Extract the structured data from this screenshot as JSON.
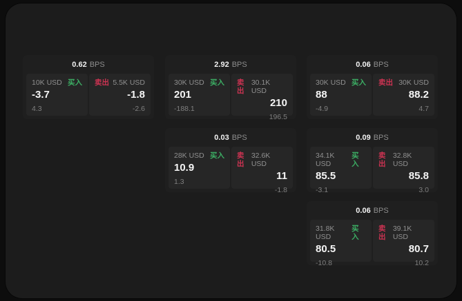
{
  "window": {
    "unit_label": "BPS",
    "buy_label": "买入",
    "sell_label": "卖出",
    "colors": {
      "background": "#0d0d0d",
      "panel": "#1c1c1c",
      "card": "#1f1f1f",
      "tile": "#262626",
      "buy_accent": "#3cae64",
      "sell_accent": "#cc3352"
    }
  },
  "cards": [
    {
      "bps": "0.62",
      "buy": {
        "amount": "10K USD",
        "price": "-3.7",
        "delta": "4.3"
      },
      "sell": {
        "amount": "5.5K USD",
        "price": "-1.8",
        "delta": "-2.6"
      }
    },
    {
      "bps": "2.92",
      "buy": {
        "amount": "30K USD",
        "price": "201",
        "delta": "-188.1"
      },
      "sell": {
        "amount": "30.1K USD",
        "price": "210",
        "delta": "196.5"
      }
    },
    {
      "bps": "0.06",
      "buy": {
        "amount": "30K USD",
        "price": "88",
        "delta": "-4.9"
      },
      "sell": {
        "amount": "30K USD",
        "price": "88.2",
        "delta": "4.7"
      }
    },
    {
      "bps": "0.03",
      "buy": {
        "amount": "28K USD",
        "price": "10.9",
        "delta": "1.3"
      },
      "sell": {
        "amount": "32.6K USD",
        "price": "11",
        "delta": "-1.8"
      }
    },
    {
      "bps": "0.09",
      "buy": {
        "amount": "34.1K USD",
        "price": "85.5",
        "delta": "-3.1"
      },
      "sell": {
        "amount": "32.8K USD",
        "price": "85.8",
        "delta": "3.0"
      }
    },
    {
      "bps": "0.06",
      "buy": {
        "amount": "31.8K USD",
        "price": "80.5",
        "delta": "-10.8"
      },
      "sell": {
        "amount": "39.1K USD",
        "price": "80.7",
        "delta": "10.2"
      }
    }
  ]
}
